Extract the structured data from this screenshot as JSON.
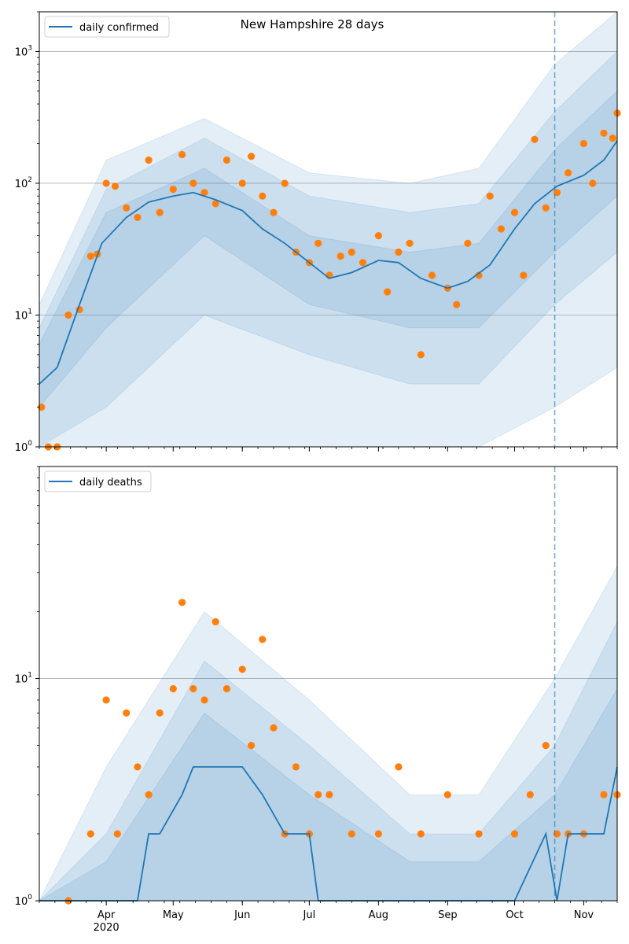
{
  "chart_data": [
    {
      "type": "line",
      "title": "New Hampshire 28 days",
      "y_scale": "log",
      "ylim": [
        1,
        2000
      ],
      "y_ticks": [
        {
          "value": 10,
          "base": "10",
          "exp": "1"
        },
        {
          "value": 100,
          "base": "10",
          "exp": "2"
        },
        {
          "value": 1000,
          "base": "10",
          "exp": "3"
        }
      ],
      "y_min_label": {
        "value": 1,
        "base": "10",
        "exp": "0"
      },
      "grid": "y-major",
      "legend": {
        "label": "daily confirmed",
        "placement": "top-left"
      },
      "forecast_date": "2020-10-19",
      "series": [
        {
          "name": "daily confirmed",
          "kind": "line",
          "x": [
            "2020-03-02",
            "2020-03-10",
            "2020-03-20",
            "2020-03-30",
            "2020-04-10",
            "2020-04-20",
            "2020-05-01",
            "2020-05-10",
            "2020-05-20",
            "2020-06-01",
            "2020-06-10",
            "2020-06-20",
            "2020-07-01",
            "2020-07-10",
            "2020-07-20",
            "2020-08-01",
            "2020-08-10",
            "2020-08-20",
            "2020-09-01",
            "2020-09-10",
            "2020-09-20",
            "2020-10-01",
            "2020-10-10",
            "2020-10-20",
            "2020-11-01",
            "2020-11-10",
            "2020-11-16"
          ],
          "y": [
            3,
            4,
            12,
            35,
            55,
            72,
            80,
            85,
            75,
            62,
            45,
            35,
            25,
            19,
            21,
            26,
            25,
            19,
            16,
            18,
            24,
            45,
            70,
            95,
            115,
            150,
            210
          ]
        },
        {
          "name": "observed",
          "kind": "scatter",
          "x": [
            "2020-03-03",
            "2020-03-06",
            "2020-03-10",
            "2020-03-15",
            "2020-03-20",
            "2020-03-25",
            "2020-03-28",
            "2020-04-01",
            "2020-04-05",
            "2020-04-10",
            "2020-04-15",
            "2020-04-20",
            "2020-04-25",
            "2020-05-01",
            "2020-05-05",
            "2020-05-10",
            "2020-05-15",
            "2020-05-20",
            "2020-05-25",
            "2020-06-01",
            "2020-06-05",
            "2020-06-10",
            "2020-06-15",
            "2020-06-20",
            "2020-06-25",
            "2020-07-01",
            "2020-07-05",
            "2020-07-10",
            "2020-07-15",
            "2020-07-20",
            "2020-07-25",
            "2020-08-01",
            "2020-08-05",
            "2020-08-10",
            "2020-08-15",
            "2020-08-20",
            "2020-08-25",
            "2020-09-01",
            "2020-09-05",
            "2020-09-10",
            "2020-09-15",
            "2020-09-20",
            "2020-09-25",
            "2020-10-01",
            "2020-10-05",
            "2020-10-10",
            "2020-10-15",
            "2020-10-20",
            "2020-10-25",
            "2020-11-01",
            "2020-11-05",
            "2020-11-10",
            "2020-11-14",
            "2020-11-16"
          ],
          "y": [
            2,
            1,
            1,
            10,
            11,
            28,
            29,
            100,
            95,
            65,
            55,
            150,
            60,
            90,
            165,
            100,
            85,
            70,
            150,
            100,
            160,
            80,
            60,
            100,
            30,
            25,
            35,
            20,
            28,
            30,
            25,
            40,
            15,
            30,
            35,
            5,
            20,
            16,
            12,
            35,
            20,
            80,
            45,
            60,
            20,
            215,
            65,
            85,
            120,
            200,
            100,
            240,
            220,
            340
          ]
        }
      ],
      "bands": [
        {
          "name": "outer",
          "x": [
            "2020-03-02",
            "2020-04-01",
            "2020-05-15",
            "2020-07-01",
            "2020-08-15",
            "2020-09-15",
            "2020-10-19",
            "2020-11-16"
          ],
          "low": [
            1,
            1,
            1,
            1,
            1,
            1,
            2,
            4
          ],
          "high": [
            12,
            150,
            310,
            120,
            100,
            130,
            800,
            2000
          ]
        },
        {
          "name": "middle",
          "x": [
            "2020-03-02",
            "2020-04-01",
            "2020-05-15",
            "2020-07-01",
            "2020-08-15",
            "2020-09-15",
            "2020-10-19",
            "2020-11-16"
          ],
          "low": [
            1,
            2,
            10,
            5,
            3,
            3,
            12,
            30
          ],
          "high": [
            8,
            90,
            220,
            80,
            60,
            70,
            350,
            1000
          ]
        },
        {
          "name": "inner",
          "x": [
            "2020-03-02",
            "2020-04-01",
            "2020-05-15",
            "2020-07-01",
            "2020-08-15",
            "2020-09-15",
            "2020-10-19",
            "2020-11-16"
          ],
          "low": [
            2,
            8,
            40,
            12,
            8,
            8,
            30,
            80
          ],
          "high": [
            6,
            60,
            130,
            40,
            30,
            35,
            180,
            500
          ]
        }
      ]
    },
    {
      "type": "line",
      "title": "",
      "y_scale": "log",
      "ylim": [
        1,
        90
      ],
      "y_ticks": [
        {
          "value": 10,
          "base": "10",
          "exp": "1"
        }
      ],
      "y_min_label": {
        "value": 1,
        "base": "10",
        "exp": "0"
      },
      "grid": "y-major",
      "legend": {
        "label": "daily deaths",
        "placement": "top-left"
      },
      "forecast_date": "2020-10-19",
      "x_ticks": [
        {
          "date": "2020-04-01",
          "label": "Apr",
          "sublabel": "2020"
        },
        {
          "date": "2020-05-01",
          "label": "May"
        },
        {
          "date": "2020-06-01",
          "label": "Jun"
        },
        {
          "date": "2020-07-01",
          "label": "Jul"
        },
        {
          "date": "2020-08-01",
          "label": "Aug"
        },
        {
          "date": "2020-09-01",
          "label": "Sep"
        },
        {
          "date": "2020-10-01",
          "label": "Oct"
        },
        {
          "date": "2020-11-01",
          "label": "Nov"
        }
      ],
      "series": [
        {
          "name": "daily deaths",
          "kind": "line",
          "x": [
            "2020-03-02",
            "2020-04-15",
            "2020-04-20",
            "2020-04-25",
            "2020-05-05",
            "2020-05-10",
            "2020-06-01",
            "2020-06-10",
            "2020-06-20",
            "2020-07-01",
            "2020-07-05",
            "2020-07-20",
            "2020-08-10",
            "2020-09-01",
            "2020-10-01",
            "2020-10-15",
            "2020-10-20",
            "2020-10-25",
            "2020-11-10",
            "2020-11-16"
          ],
          "y": [
            1,
            1,
            2,
            2,
            3,
            4,
            4,
            3,
            2,
            2,
            1,
            1,
            1,
            1,
            1,
            2,
            1,
            2,
            2,
            4
          ]
        },
        {
          "name": "observed",
          "kind": "scatter",
          "x": [
            "2020-03-15",
            "2020-03-25",
            "2020-04-01",
            "2020-04-06",
            "2020-04-10",
            "2020-04-15",
            "2020-04-20",
            "2020-04-25",
            "2020-05-01",
            "2020-05-05",
            "2020-05-10",
            "2020-05-15",
            "2020-05-20",
            "2020-05-25",
            "2020-06-01",
            "2020-06-05",
            "2020-06-10",
            "2020-06-15",
            "2020-06-20",
            "2020-06-25",
            "2020-07-01",
            "2020-07-05",
            "2020-07-10",
            "2020-07-20",
            "2020-08-01",
            "2020-08-10",
            "2020-08-20",
            "2020-09-01",
            "2020-09-15",
            "2020-10-01",
            "2020-10-08",
            "2020-10-15",
            "2020-10-20",
            "2020-10-25",
            "2020-11-01",
            "2020-11-10",
            "2020-11-16"
          ],
          "y": [
            1,
            2,
            8,
            2,
            7,
            4,
            3,
            7,
            9,
            22,
            9,
            8,
            18,
            9,
            11,
            5,
            15,
            6,
            2,
            4,
            2,
            3,
            3,
            2,
            2,
            4,
            2,
            3,
            2,
            2,
            3,
            5,
            2,
            2,
            2,
            3,
            3
          ]
        }
      ],
      "bands": [
        {
          "name": "outer",
          "x": [
            "2020-03-02",
            "2020-04-01",
            "2020-05-15",
            "2020-07-01",
            "2020-08-15",
            "2020-09-15",
            "2020-10-19",
            "2020-11-16"
          ],
          "low": [
            1,
            1,
            1,
            1,
            1,
            1,
            1,
            1
          ],
          "high": [
            1,
            4,
            20,
            8,
            3,
            3,
            10,
            32
          ]
        },
        {
          "name": "middle",
          "x": [
            "2020-03-02",
            "2020-04-01",
            "2020-05-15",
            "2020-07-01",
            "2020-08-15",
            "2020-09-15",
            "2020-10-19",
            "2020-11-16"
          ],
          "low": [
            1,
            1,
            1,
            1,
            1,
            1,
            1,
            1
          ],
          "high": [
            1,
            2,
            12,
            5,
            2,
            2,
            5,
            18
          ]
        },
        {
          "name": "inner",
          "x": [
            "2020-03-02",
            "2020-04-01",
            "2020-05-15",
            "2020-07-01",
            "2020-08-15",
            "2020-09-15",
            "2020-10-19",
            "2020-11-16"
          ],
          "low": [
            1,
            1,
            1,
            1,
            1,
            1,
            1,
            1
          ],
          "high": [
            1,
            1.5,
            7,
            3,
            1.5,
            1.5,
            3,
            9
          ]
        }
      ]
    }
  ],
  "colors": {
    "line": "#1f77b4",
    "points": "#ff7f0e",
    "band": "#1f77b4",
    "forecast_line": "#1f77b4",
    "grid": "#b0b0b0",
    "axes": "#000000"
  }
}
